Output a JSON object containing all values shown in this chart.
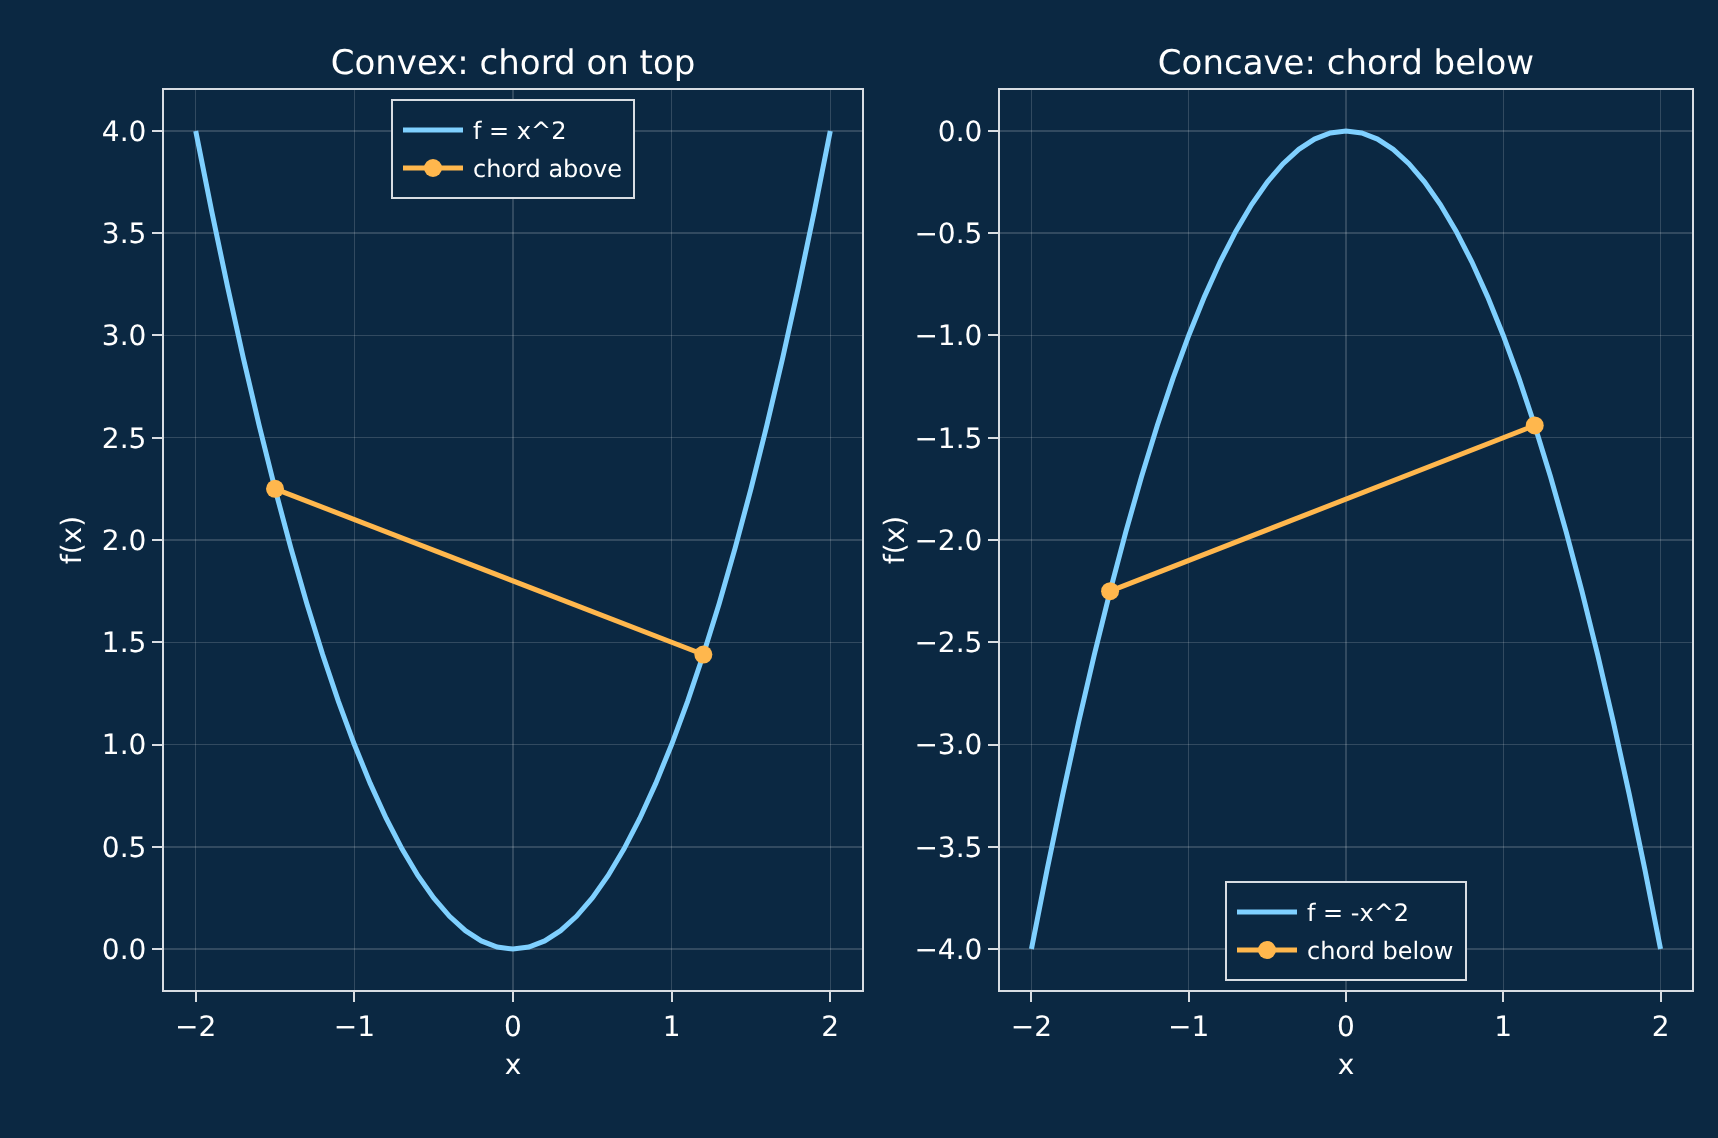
{
  "chart_data": [
    {
      "type": "line",
      "title": "Convex: chord on top",
      "xlabel": "x",
      "ylabel": "f(x)",
      "xlim": [
        -2.2,
        2.2
      ],
      "xticks": [
        -2,
        -1,
        0,
        1,
        2
      ],
      "ylim": [
        -0.2,
        4.2
      ],
      "yticks": [
        {
          "value": 0,
          "label": "0.0"
        },
        0.5,
        {
          "value": 1,
          "label": "1.0"
        },
        1.5,
        {
          "value": 2,
          "label": "2.0"
        },
        2.5,
        {
          "value": 3,
          "label": "3.0"
        },
        3.5,
        {
          "value": 4,
          "label": "4.0"
        }
      ],
      "grid": true,
      "legend": "top",
      "series": [
        {
          "name": "f = x^2",
          "color": "#7fd0ff",
          "marker": "none",
          "x": [
            -2,
            -1.9,
            -1.8,
            -1.7,
            -1.6,
            -1.5,
            -1.4,
            -1.3,
            -1.2,
            -1.1,
            -1,
            -0.9,
            -0.8,
            -0.7,
            -0.6,
            -0.5,
            -0.4,
            -0.3,
            -0.2,
            -0.1,
            0,
            0.1,
            0.2,
            0.3,
            0.4,
            0.5,
            0.6,
            0.7,
            0.8,
            0.9,
            1,
            1.1,
            1.2,
            1.3,
            1.4,
            1.5,
            1.6,
            1.7,
            1.8,
            1.9,
            2
          ],
          "values": [
            4,
            3.61,
            3.24,
            2.89,
            2.56,
            2.25,
            1.96,
            1.69,
            1.44,
            1.21,
            1,
            0.81,
            0.64,
            0.49,
            0.36,
            0.25,
            0.16,
            0.09,
            0.04,
            0.01,
            0,
            0.01,
            0.04,
            0.09,
            0.16,
            0.25,
            0.36,
            0.49,
            0.64,
            0.81,
            1,
            1.21,
            1.44,
            1.69,
            1.96,
            2.25,
            2.56,
            2.89,
            3.24,
            3.61,
            4
          ]
        },
        {
          "name": "chord above",
          "color": "#ffb74d",
          "marker": "circle",
          "x": [
            -1.5,
            1.2
          ],
          "values": [
            2.25,
            1.44
          ]
        }
      ]
    },
    {
      "type": "line",
      "title": "Concave: chord below",
      "xlabel": "x",
      "ylabel": "f(x)",
      "xlim": [
        -2.2,
        2.2
      ],
      "xticks": [
        -2,
        -1,
        0,
        1,
        2
      ],
      "ylim": [
        -4.2,
        0.2
      ],
      "yticks": [
        {
          "value": -4,
          "label": "−4.0"
        },
        {
          "value": -3.5,
          "label": "−3.5"
        },
        {
          "value": -3,
          "label": "−3.0"
        },
        {
          "value": -2.5,
          "label": "−2.5"
        },
        {
          "value": -2,
          "label": "−2.0"
        },
        {
          "value": -1.5,
          "label": "−1.5"
        },
        {
          "value": -1,
          "label": "−1.0"
        },
        {
          "value": -0.5,
          "label": "−0.5"
        },
        {
          "value": 0,
          "label": "0.0"
        }
      ],
      "grid": true,
      "legend": "bottom",
      "series": [
        {
          "name": "f = -x^2",
          "color": "#7fd0ff",
          "marker": "none",
          "x": [
            -2,
            -1.9,
            -1.8,
            -1.7,
            -1.6,
            -1.5,
            -1.4,
            -1.3,
            -1.2,
            -1.1,
            -1,
            -0.9,
            -0.8,
            -0.7,
            -0.6,
            -0.5,
            -0.4,
            -0.3,
            -0.2,
            -0.1,
            0,
            0.1,
            0.2,
            0.3,
            0.4,
            0.5,
            0.6,
            0.7,
            0.8,
            0.9,
            1,
            1.1,
            1.2,
            1.3,
            1.4,
            1.5,
            1.6,
            1.7,
            1.8,
            1.9,
            2
          ],
          "values": [
            -4,
            -3.61,
            -3.24,
            -2.89,
            -2.56,
            -2.25,
            -1.96,
            -1.69,
            -1.44,
            -1.21,
            -1,
            -0.81,
            -0.64,
            -0.49,
            -0.36,
            -0.25,
            -0.16,
            -0.09,
            -0.04,
            -0.01,
            0,
            -0.01,
            -0.04,
            -0.09,
            -0.16,
            -0.25,
            -0.36,
            -0.49,
            -0.64,
            -0.81,
            -1,
            -1.21,
            -1.44,
            -1.69,
            -1.96,
            -2.25,
            -2.56,
            -2.89,
            -3.24,
            -3.61,
            -4
          ]
        },
        {
          "name": "chord below",
          "color": "#ffb74d",
          "marker": "circle",
          "x": [
            -1.5,
            1.2
          ],
          "values": [
            -2.25,
            -1.44
          ]
        }
      ]
    }
  ]
}
